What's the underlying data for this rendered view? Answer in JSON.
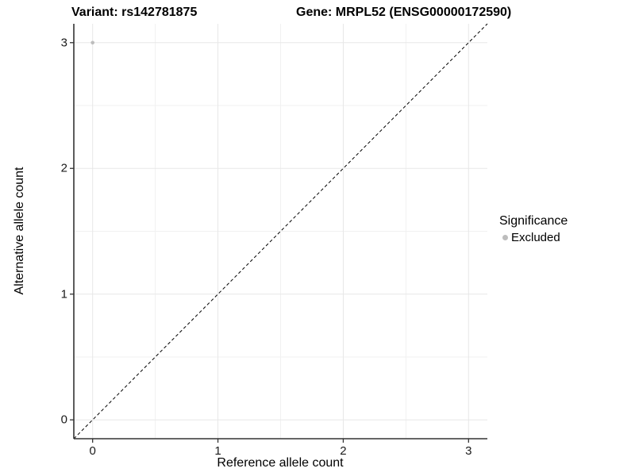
{
  "titles": {
    "left": "Variant: rs142781875",
    "right": "Gene: MRPL52 (ENSG00000172590)"
  },
  "legend": {
    "title": "Significance",
    "items": [
      {
        "label": "Excluded",
        "color": "#bdbdbd"
      }
    ]
  },
  "colors": {
    "point": "#bdbdbd",
    "grid_major": "#e7e7e7",
    "grid_minor": "#f1f1f1",
    "axis_line": "#333333",
    "identity_line": "#000000",
    "background": "#ffffff"
  },
  "chart_data": {
    "type": "scatter",
    "title_left": "Variant: rs142781875",
    "title_right": "Gene: MRPL52 (ENSG00000172590)",
    "xlabel": "Reference allele count",
    "ylabel": "Alternative allele count",
    "xlim": [
      -0.15,
      3.15
    ],
    "ylim": [
      -0.15,
      3.15
    ],
    "x_ticks": [
      0,
      1,
      2,
      3
    ],
    "y_ticks": [
      0,
      1,
      2,
      3
    ],
    "x_minor_ticks": [
      0.5,
      1.5,
      2.5
    ],
    "y_minor_ticks": [
      0.5,
      1.5,
      2.5
    ],
    "grid": true,
    "legend_position": "right",
    "legend_title": "Significance",
    "series": [
      {
        "name": "Excluded",
        "color": "#bdbdbd",
        "points": [
          {
            "x": 0,
            "y": 3
          }
        ]
      }
    ],
    "reference_line": {
      "type": "identity",
      "style": "dashed",
      "from": [
        -0.15,
        -0.15
      ],
      "to": [
        3.15,
        3.15
      ]
    }
  }
}
